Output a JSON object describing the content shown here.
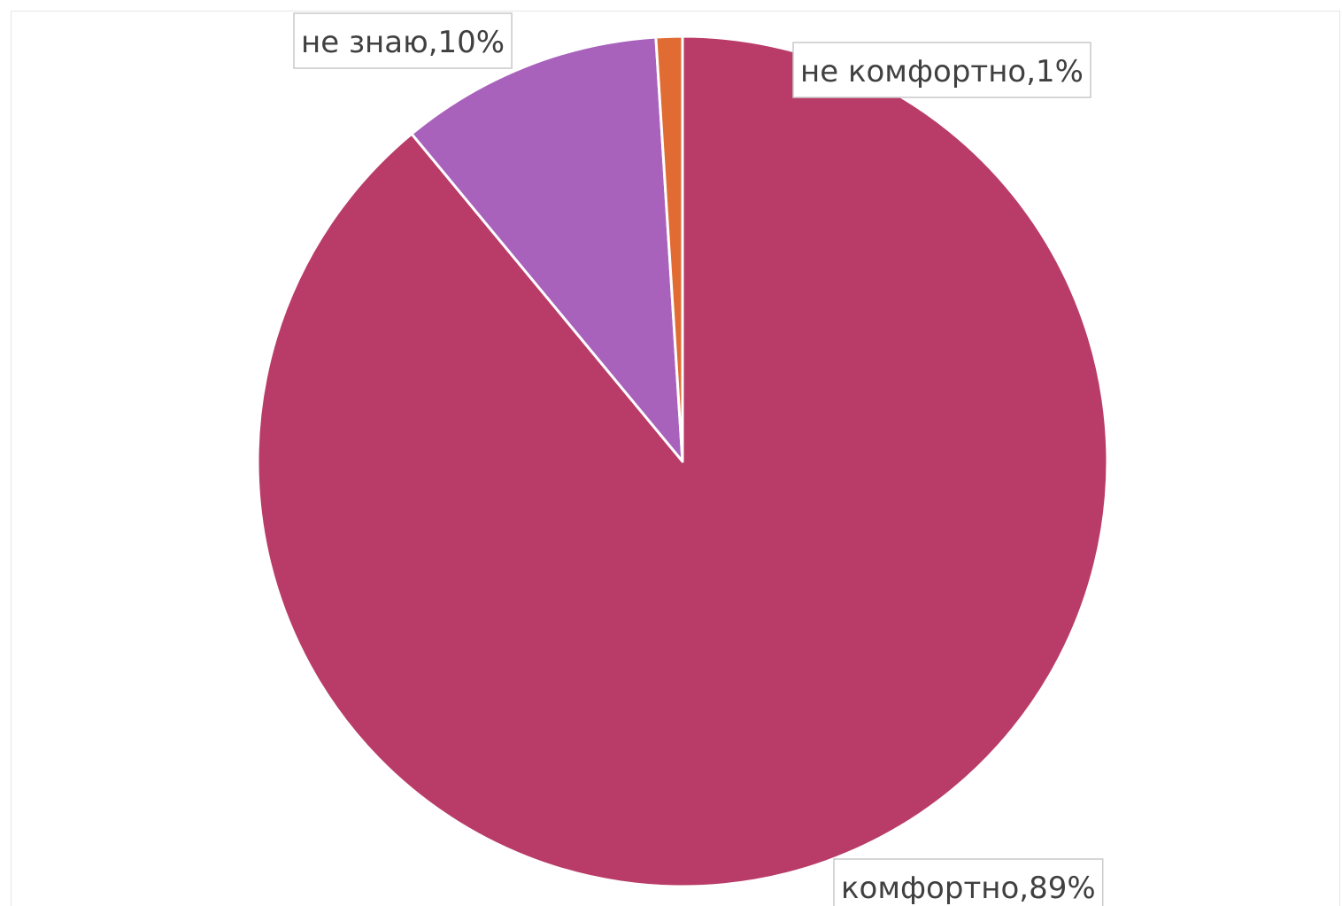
{
  "chart_data": {
    "type": "pie",
    "start_angle_deg": 0,
    "direction": "clockwise",
    "slices": [
      {
        "label": "комфортно",
        "value": 89,
        "data_label": "комфортно,89%",
        "color": "#b93c68"
      },
      {
        "label": "не знаю",
        "value": 10,
        "data_label": "не знаю,10%",
        "color": "#a962bc"
      },
      {
        "label": "не комфортно",
        "value": 1,
        "data_label": "не комфортно,1%",
        "color": "#e06c33"
      }
    ],
    "slice_border_color": "#ffffff"
  }
}
